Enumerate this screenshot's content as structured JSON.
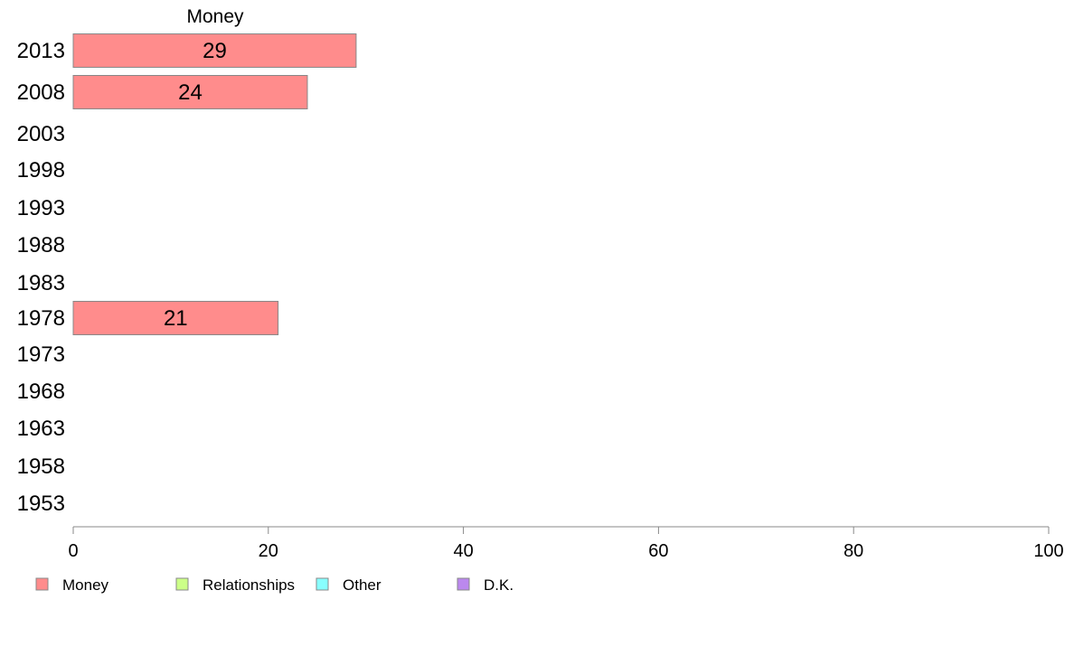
{
  "chart_data": {
    "type": "bar",
    "orientation": "horizontal",
    "title": "Money",
    "categories": [
      "2013",
      "2008",
      "2003",
      "1998",
      "1993",
      "1988",
      "1983",
      "1978",
      "1973",
      "1968",
      "1963",
      "1958",
      "1953"
    ],
    "series": [
      {
        "name": "Money",
        "color": "#ff8c8c",
        "values": [
          29,
          24,
          null,
          null,
          null,
          null,
          null,
          21,
          null,
          null,
          null,
          null,
          null
        ]
      }
    ],
    "x_ticks": [
      0,
      20,
      40,
      60,
      80,
      100
    ],
    "xlim": [
      0,
      100
    ],
    "legend": {
      "position": "bottom-left",
      "items": [
        {
          "label": "Money",
          "color": "#ff8c8c"
        },
        {
          "label": "Relationships",
          "color": "#ccff88"
        },
        {
          "label": "Other",
          "color": "#88ffff"
        },
        {
          "label": "D.K.",
          "color": "#bb88ee"
        }
      ]
    },
    "grid": false
  }
}
